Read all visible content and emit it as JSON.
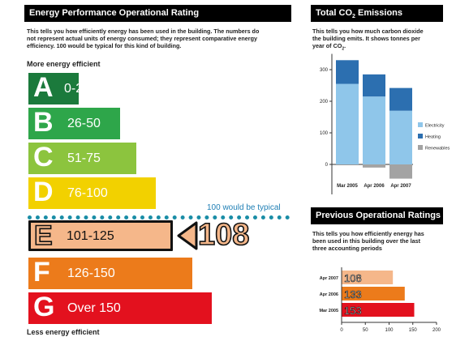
{
  "left_panel": {
    "title": "Energy Performance Operational Rating",
    "blurb": [
      "This tells you how efficiently energy has been used in the building. The numbers do",
      "not represent actual units of energy consumed; they represent comparative energy",
      "efficiency. 100 would be typical for this kind of building."
    ],
    "more_label": "More energy efficient",
    "less_label": "Less energy efficient",
    "typical_label": "100 would be typical",
    "current_value": "108",
    "bands": [
      {
        "letter": "A",
        "range": "0-25",
        "color": "#1b7a3c"
      },
      {
        "letter": "B",
        "range": "26-50",
        "color": "#2ea64a"
      },
      {
        "letter": "C",
        "range": "51-75",
        "color": "#8cc43e"
      },
      {
        "letter": "D",
        "range": "76-100",
        "color": "#f2d100"
      },
      {
        "letter": "E",
        "range": "101-125",
        "color": "#f5b78a"
      },
      {
        "letter": "F",
        "range": "126-150",
        "color": "#ec7b1b"
      },
      {
        "letter": "G",
        "range": "Over 150",
        "color": "#e3111e"
      }
    ]
  },
  "co2_panel": {
    "title_prefix": "Total CO",
    "title_sub": "2",
    "title_suffix": " Emissions",
    "blurb": [
      "This tells you how much carbon dioxide",
      "the building emits. It shows tonnes per"
    ],
    "blurb_last_prefix": "year of CO",
    "blurb_last_sub": "2",
    "blurb_last_suffix": ".",
    "legend": [
      "Electricity",
      "Heating",
      "Renewables"
    ]
  },
  "prev_panel": {
    "title": "Previous Operational Ratings",
    "blurb": [
      "This tells you how efficiently energy has",
      "been used in this building over the last",
      "three accounting periods"
    ]
  },
  "chart_data": [
    {
      "type": "bar",
      "stacked": true,
      "categories": [
        "Mar 2005",
        "Apr 2006",
        "Apr 2007"
      ],
      "series": [
        {
          "name": "Electricity",
          "color": "#8fc6ea",
          "values": [
            255,
            215,
            170
          ]
        },
        {
          "name": "Heating",
          "color": "#2c6fb0",
          "values": [
            75,
            70,
            72
          ]
        },
        {
          "name": "Renewables",
          "color": "#a3a3a3",
          "values": [
            0,
            -10,
            -45
          ]
        }
      ],
      "yticks": [
        -100,
        0,
        100,
        200,
        300
      ],
      "ylim": [
        -100,
        350
      ],
      "legend_position": "right"
    },
    {
      "type": "bar",
      "orientation": "horizontal",
      "categories": [
        "Apr 2007",
        "Apr 2006",
        "Mar 2005"
      ],
      "values": [
        108,
        133,
        153
      ],
      "value_labels": [
        "108",
        "133",
        "153"
      ],
      "colors": [
        "#f5b78a",
        "#ec7b1b",
        "#e3111e"
      ],
      "xticks": [
        0,
        50,
        100,
        150,
        200
      ],
      "xlim": [
        0,
        200
      ]
    }
  ]
}
